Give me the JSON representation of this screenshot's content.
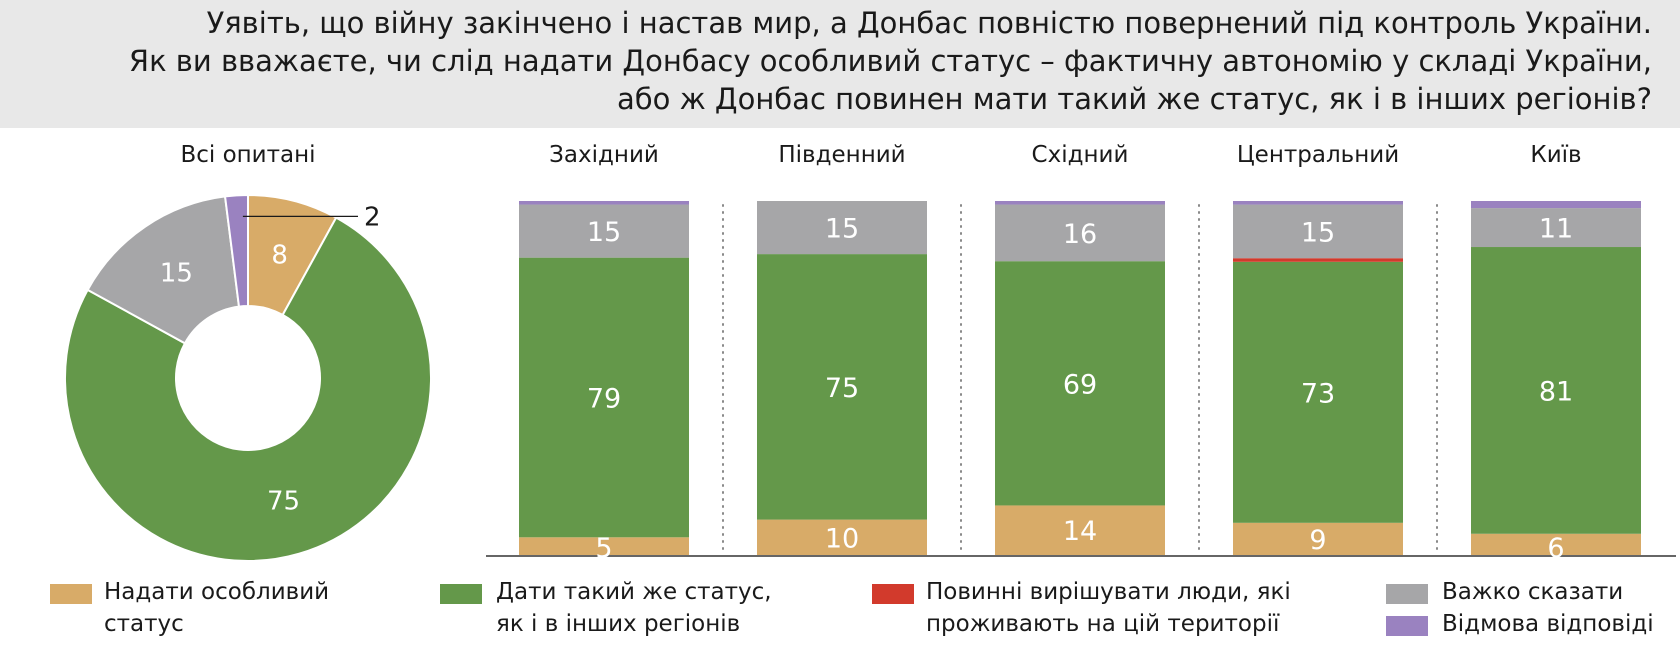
{
  "title": {
    "line1": "Уявіть, що війну закінчено і настав мир, а Донбас повністю повернений під контроль України.",
    "line2": "Як ви вважаєте, чи слід надати Донбасу особливий статус – фактичну автономію у складі України,",
    "line3": "або ж Донбас повинен мати такий же статус, як і в інших регіонів?"
  },
  "colors": {
    "special": "#d8ab68",
    "same": "#64984a",
    "locals": "#d23a2c",
    "hard": "#a6a6a8",
    "refusal": "#9a82c0"
  },
  "chart_data": [
    {
      "type": "pie",
      "title": "Всі опитані",
      "donut": true,
      "slices": [
        {
          "key": "special",
          "label": "Надати особливий статус",
          "value": 8
        },
        {
          "key": "same",
          "label": "Дати такий же статус, як і в інших регіонів",
          "value": 75
        },
        {
          "key": "hard",
          "label": "Важко сказати",
          "value": 15
        },
        {
          "key": "refusal",
          "label": "Відмова відповіді",
          "value": 2
        }
      ]
    },
    {
      "type": "bar",
      "stacked": true,
      "categories": [
        "Західний",
        "Південний",
        "Східний",
        "Центральний",
        "Київ"
      ],
      "ylim": [
        0,
        100
      ],
      "series": [
        {
          "key": "special",
          "name": "Надати особливий статус",
          "values": [
            5,
            10,
            14,
            9,
            6
          ]
        },
        {
          "key": "same",
          "name": "Дати такий же статус, як і в інших регіонів",
          "values": [
            79,
            75,
            69,
            73,
            81
          ]
        },
        {
          "key": "locals",
          "name": "Повинні вирішувати люди, які проживають на цій території",
          "values": [
            0,
            0,
            0,
            1,
            0
          ]
        },
        {
          "key": "hard",
          "name": "Важко сказати",
          "values": [
            15,
            15,
            16,
            15,
            11
          ]
        },
        {
          "key": "refusal",
          "name": "Відмова відповіді",
          "values": [
            1,
            0,
            1,
            1,
            2
          ]
        }
      ],
      "labels": {
        "special": [
          "5",
          "10",
          "14",
          "9",
          "6"
        ],
        "same": [
          "79",
          "75",
          "69",
          "73",
          "81"
        ],
        "hard": [
          "15",
          "15",
          "16",
          "15",
          "11"
        ]
      }
    }
  ],
  "legend": [
    {
      "key": "special",
      "line1": "Надати особливий",
      "line2": "статус"
    },
    {
      "key": "same",
      "line1": "Дати такий же статус,",
      "line2": "як і в інших регіонів"
    },
    {
      "key": "locals",
      "line1": "Повинні вирішувати люди, які",
      "line2": "проживають на цій території"
    },
    {
      "key": "hard",
      "line1": "Важко сказати",
      "line2": ""
    },
    {
      "key": "refusal",
      "line1": "Відмова відповіді",
      "line2": ""
    }
  ]
}
